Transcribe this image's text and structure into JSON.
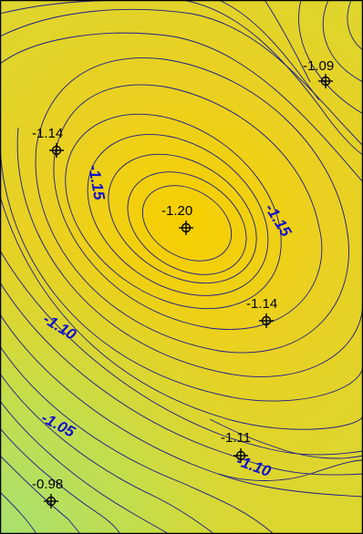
{
  "colors": {
    "background_fill": "#e4cd24",
    "contour_line": "#1a1a8a",
    "contour_label": "#1010cc",
    "low_zone": "#b9e060",
    "high_zone": "#f6cf05",
    "frame": "#000000",
    "marker": "#000000"
  },
  "icon_names": {
    "sample_point": "crosshair-circle-icon"
  },
  "points": [
    {
      "label": "-1.09",
      "value": -1.09
    },
    {
      "label": "-1.14",
      "value": -1.14
    },
    {
      "label": "-1.20",
      "value": -1.2
    },
    {
      "label": "-1.14",
      "value": -1.14
    },
    {
      "label": "-1.11",
      "value": -1.11
    },
    {
      "label": "-0.98",
      "value": -0.98
    }
  ],
  "contour_labels": [
    {
      "text": "-1.15"
    },
    {
      "text": "-1.15"
    },
    {
      "text": "-1.10"
    },
    {
      "text": "-1.05"
    },
    {
      "text": "-1.10"
    }
  ]
}
